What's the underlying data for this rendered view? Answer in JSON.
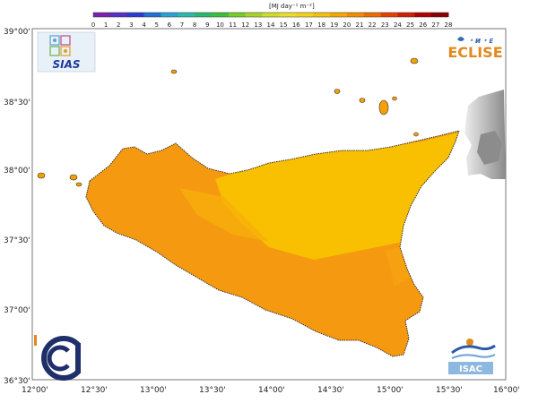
{
  "colorbar": {
    "title": "[MJ day⁻¹ m⁻²]",
    "ticks": [
      "0",
      "1",
      "2",
      "3",
      "4",
      "5",
      "6",
      "7",
      "8",
      "9",
      "10",
      "11",
      "12",
      "13",
      "14",
      "15",
      "16",
      "17",
      "18",
      "19",
      "20",
      "21",
      "22",
      "23",
      "24",
      "25",
      "26",
      "27",
      "28"
    ],
    "colors": [
      "#7b1fb0",
      "#5b2fc4",
      "#2a3bd0",
      "#1f6fd8",
      "#2aa0d8",
      "#2ab8b0",
      "#2ab870",
      "#3cc03c",
      "#78cc2a",
      "#a8d42a",
      "#d0dc2a",
      "#e8e02a",
      "#f2d21a",
      "#f6c00c",
      "#f6a800",
      "#f28c00",
      "#ec6c00",
      "#e24400",
      "#cc2000",
      "#b00000",
      "#8a0000"
    ]
  },
  "axes": {
    "lat_labels": [
      "39°00'",
      "38°30'",
      "38°00'",
      "37°30'",
      "37°00'",
      "36°30'"
    ],
    "lon_labels": [
      "12°00'",
      "12°30'",
      "13°00'",
      "13°30'",
      "14°00'",
      "14°30'",
      "15°00'",
      "15°30'",
      "16°00'"
    ]
  },
  "logos": {
    "top_left": "SIAS",
    "top_right": "ECLISE",
    "bottom_right": "ISAC"
  },
  "colors": {
    "sicily_main": "#f59a10",
    "sicily_yellow": "#f8c200",
    "coast": "#333333",
    "relief_gray": "#c8c8c8"
  }
}
